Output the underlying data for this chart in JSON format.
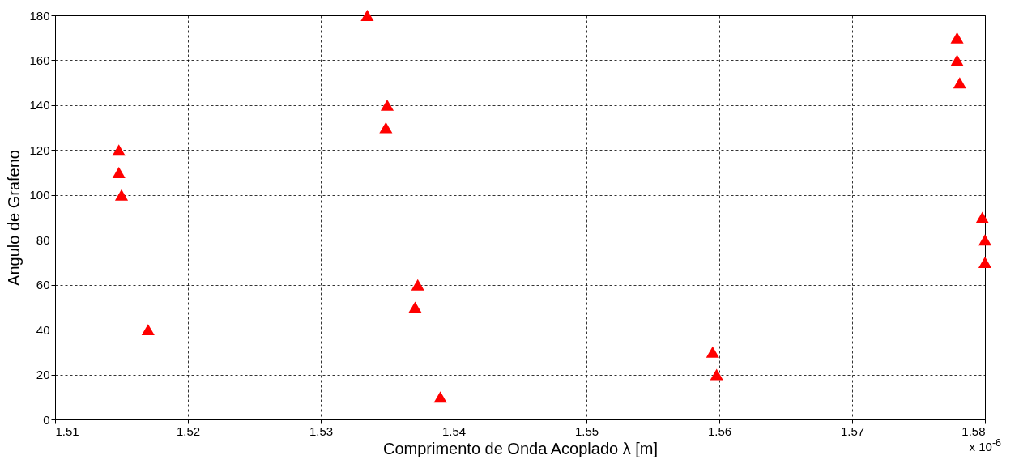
{
  "chart_data": {
    "type": "scatter",
    "xlabel": "Comprimento de Onda Acoplado λ [m]",
    "ylabel": "Angulo de Grafeno",
    "x": [
      1.5148,
      1.5148,
      1.515,
      1.517,
      1.5335,
      1.535,
      1.5349,
      1.5373,
      1.5371,
      1.539,
      1.5595,
      1.5598,
      1.5779,
      1.5779,
      1.5781,
      1.5798,
      1.58,
      1.58
    ],
    "series": [
      {
        "color": "#ff0000",
        "values": [
          120,
          110,
          100,
          40,
          180,
          140,
          130,
          60,
          50,
          10,
          30,
          20,
          170,
          160,
          150,
          90,
          80,
          70
        ]
      }
    ],
    "xlim": [
      1.51,
      1.58
    ],
    "xticks": [
      1.51,
      1.52,
      1.53,
      1.54,
      1.55,
      1.56,
      1.57,
      1.58
    ],
    "ylim": [
      0,
      180
    ],
    "yticks": [
      0,
      20,
      40,
      60,
      80,
      100,
      120,
      140,
      160,
      180
    ],
    "grid": true,
    "marker": "triangle",
    "annotations": [
      "x 10$^{-6}$"
    ]
  }
}
